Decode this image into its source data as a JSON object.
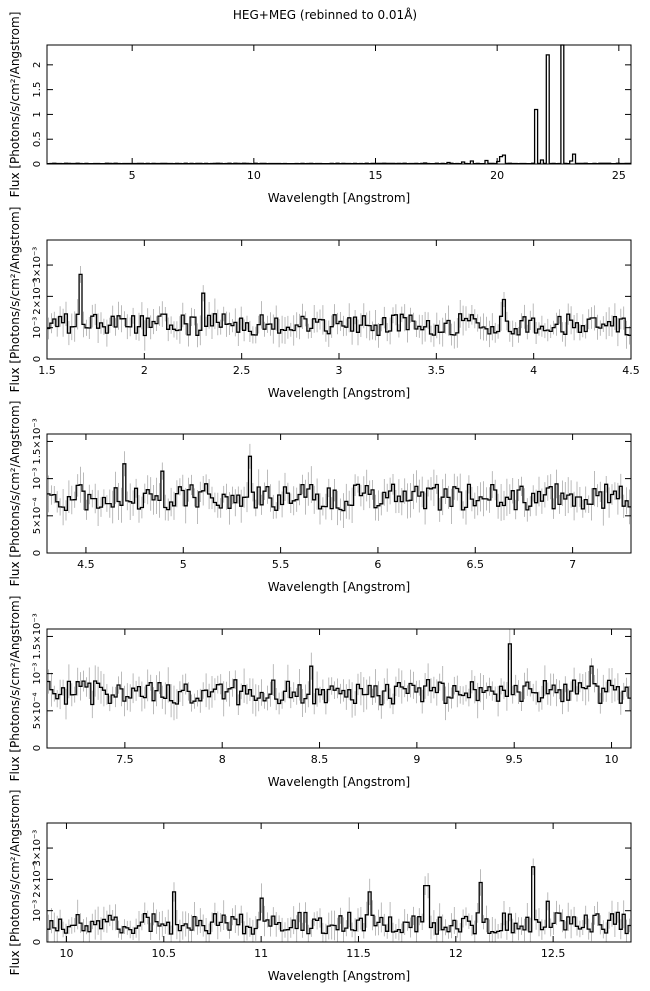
{
  "figure": {
    "title": "HEG+MEG (rebinned to 0.01Å)"
  },
  "chart_data": [
    {
      "type": "line",
      "xlabel": "Wavelength [Angstrom]",
      "ylabel": "Flux [Photons/s/cm²/Angstrom]",
      "xlim": [
        1.5,
        25.5
      ],
      "ylim": [
        0,
        2.4
      ],
      "xticks": [
        5,
        10,
        15,
        20,
        25
      ],
      "xtick_labels": [
        "5",
        "10",
        "15",
        "20",
        "25"
      ],
      "yticks": [
        0,
        0.5,
        1,
        1.5,
        2
      ],
      "ytick_labels": [
        "0",
        "0.5",
        "1",
        "1.5",
        "2"
      ],
      "grid": false,
      "baseline": 0.01,
      "noise": 0.004,
      "peaks": [
        {
          "x": 17.05,
          "y": 0.02
        },
        {
          "x": 18.0,
          "y": 0.03
        },
        {
          "x": 18.6,
          "y": 0.04
        },
        {
          "x": 18.97,
          "y": 0.06
        },
        {
          "x": 19.5,
          "y": 0.07
        },
        {
          "x": 20.0,
          "y": 0.05
        },
        {
          "x": 20.2,
          "y": 0.15
        },
        {
          "x": 20.3,
          "y": 0.18
        },
        {
          "x": 21.6,
          "y": 1.1
        },
        {
          "x": 21.8,
          "y": 0.08
        },
        {
          "x": 22.1,
          "y": 2.2
        },
        {
          "x": 22.7,
          "y": 2.4
        },
        {
          "x": 23.05,
          "y": 0.06
        },
        {
          "x": 23.2,
          "y": 0.2
        }
      ]
    },
    {
      "type": "line",
      "xlabel": "Wavelength [Angstrom]",
      "ylabel": "Flux [Photons/s/cm²/Angstrom]",
      "xlim": [
        1.5,
        4.5
      ],
      "ylim": [
        0,
        0.0038
      ],
      "xticks": [
        1.5,
        2,
        2.5,
        3,
        3.5,
        4,
        4.5
      ],
      "xtick_labels": [
        "1.5",
        "2",
        "2.5",
        "3",
        "3.5",
        "4",
        "4.5"
      ],
      "yticks": [
        0,
        0.001,
        0.002,
        0.003
      ],
      "ytick_labels": [
        "0",
        "10⁻³",
        "2×10⁻³",
        "3×10⁻³"
      ],
      "grid": false,
      "baseline": 0.0011,
      "noise": 0.00035,
      "peaks": [
        {
          "x": 1.67,
          "y": 0.0027
        },
        {
          "x": 2.3,
          "y": 0.0021
        },
        {
          "x": 3.84,
          "y": 0.0019
        }
      ]
    },
    {
      "type": "line",
      "xlabel": "Wavelength [Angstrom]",
      "ylabel": "Flux [Photons/s/cm²/Angstrom]",
      "xlim": [
        4.3,
        7.3
      ],
      "ylim": [
        0,
        0.0016
      ],
      "xticks": [
        4.5,
        5,
        5.5,
        6,
        6.5,
        7
      ],
      "xtick_labels": [
        "4.5",
        "5",
        "5.5",
        "6",
        "6.5",
        "7"
      ],
      "yticks": [
        0,
        0.0005,
        0.001,
        0.0015
      ],
      "ytick_labels": [
        "0",
        "5×10⁻⁴",
        "10⁻³",
        "1.5×10⁻³"
      ],
      "grid": false,
      "baseline": 0.00075,
      "noise": 0.00018,
      "peaks": [
        {
          "x": 4.7,
          "y": 0.0012
        },
        {
          "x": 4.89,
          "y": 0.0011
        },
        {
          "x": 5.34,
          "y": 0.0013
        }
      ]
    },
    {
      "type": "line",
      "xlabel": "Wavelength [Angstrom]",
      "ylabel": "Flux [Photons/s/cm²/Angstrom]",
      "xlim": [
        7.1,
        10.1
      ],
      "ylim": [
        0,
        0.0016
      ],
      "xticks": [
        7.5,
        8,
        8.5,
        9,
        9.5,
        10
      ],
      "xtick_labels": [
        "7.5",
        "8",
        "8.5",
        "9",
        "9.5",
        "10"
      ],
      "yticks": [
        0,
        0.0005,
        0.001,
        0.0015
      ],
      "ytick_labels": [
        "0",
        "5×10⁻⁴",
        "10⁻³",
        "1.5×10⁻³"
      ],
      "grid": false,
      "baseline": 0.00075,
      "noise": 0.00017,
      "peaks": [
        {
          "x": 8.45,
          "y": 0.0011
        },
        {
          "x": 9.47,
          "y": 0.0014
        },
        {
          "x": 9.9,
          "y": 0.0011
        }
      ]
    },
    {
      "type": "line",
      "xlabel": "Wavelength [Angstrom]",
      "ylabel": "Flux [Photons/s/cm²/Angstrom]",
      "xlim": [
        9.9,
        12.9
      ],
      "ylim": [
        0,
        0.0038
      ],
      "xticks": [
        10,
        10.5,
        11,
        11.5,
        12,
        12.5
      ],
      "xtick_labels": [
        "10",
        "10.5",
        "11",
        "11.5",
        "12",
        "12.5"
      ],
      "yticks": [
        0,
        0.001,
        0.002,
        0.003
      ],
      "ytick_labels": [
        "0",
        "10⁻³",
        "2×10⁻³",
        "3×10⁻³"
      ],
      "grid": false,
      "baseline": 0.0006,
      "noise": 0.00035,
      "peaks": [
        {
          "x": 10.55,
          "y": 0.0016
        },
        {
          "x": 11.0,
          "y": 0.0014
        },
        {
          "x": 11.55,
          "y": 0.0016
        },
        {
          "x": 11.85,
          "y": 0.0018
        },
        {
          "x": 12.13,
          "y": 0.0019
        },
        {
          "x": 12.39,
          "y": 0.0024
        },
        {
          "x": 12.47,
          "y": 0.0013
        }
      ]
    }
  ]
}
